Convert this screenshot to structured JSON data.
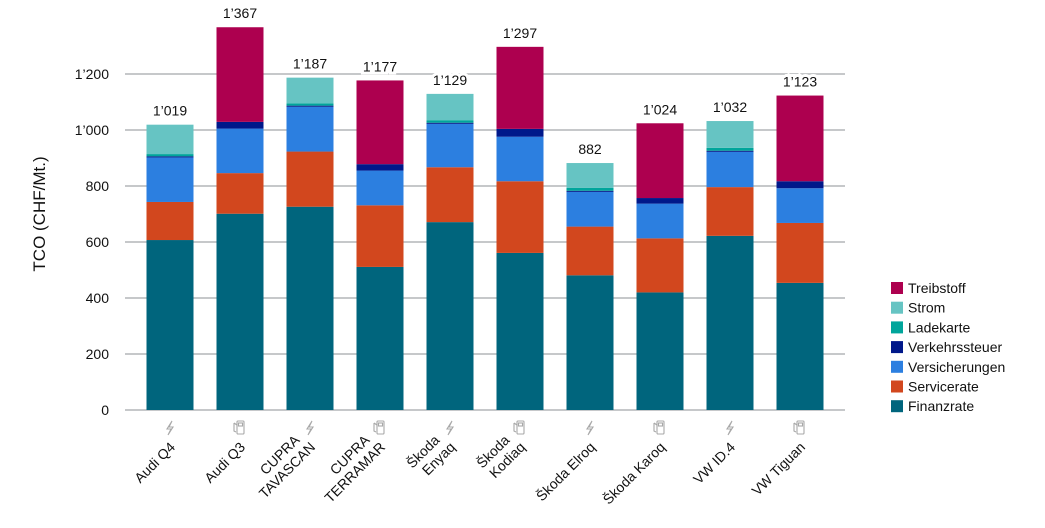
{
  "chart_data": {
    "type": "bar",
    "stacked": true,
    "title": "",
    "xlabel": "",
    "ylabel": "TCO (CHF/Mt.)",
    "ylim": [
      0,
      1400
    ],
    "yticks": [
      0,
      200,
      400,
      600,
      800,
      1000,
      1200
    ],
    "ytick_labels": [
      "0",
      "200",
      "400",
      "600",
      "800",
      "1’000",
      "1’200"
    ],
    "grid": true,
    "legend_position": "right",
    "categories": [
      {
        "label": [
          "Audi Q4"
        ],
        "drive": "electric",
        "total_label": "1’019"
      },
      {
        "label": [
          "Audi Q3"
        ],
        "drive": "fuel",
        "total_label": "1’367"
      },
      {
        "label": [
          "CUPRA",
          "TAVASCAN"
        ],
        "drive": "electric",
        "total_label": "1’187"
      },
      {
        "label": [
          "CUPRA",
          "TERRAMAR"
        ],
        "drive": "fuel",
        "total_label": "1’177"
      },
      {
        "label": [
          "Škoda",
          "Enyaq"
        ],
        "drive": "electric",
        "total_label": "1’129"
      },
      {
        "label": [
          "Škoda",
          "Kodiaq"
        ],
        "drive": "fuel",
        "total_label": "1’297"
      },
      {
        "label": [
          "Škoda Elroq"
        ],
        "drive": "electric",
        "total_label": "882"
      },
      {
        "label": [
          "Škoda Karoq"
        ],
        "drive": "fuel",
        "total_label": "1’024"
      },
      {
        "label": [
          "VW ID.4"
        ],
        "drive": "electric",
        "total_label": "1’032"
      },
      {
        "label": [
          "VW Tiguan"
        ],
        "drive": "fuel",
        "total_label": "1’123"
      }
    ],
    "series": [
      {
        "name": "Finanzrate",
        "color": "#00657D",
        "values": [
          607,
          701,
          726,
          511,
          671,
          561,
          481,
          420,
          622,
          454
        ]
      },
      {
        "name": "Servicerate",
        "color": "#D2471E",
        "values": [
          136,
          145,
          197,
          220,
          196,
          256,
          174,
          193,
          174,
          214
        ]
      },
      {
        "name": "Versicherungen",
        "color": "#2C7FE0",
        "values": [
          159,
          159,
          160,
          124,
          155,
          159,
          124,
          124,
          126,
          124
        ]
      },
      {
        "name": "Verkehrssteuer",
        "color": "#00188A",
        "values": [
          4,
          24,
          4,
          23,
          4,
          28,
          4,
          20,
          4,
          25
        ]
      },
      {
        "name": "Ladekarte",
        "color": "#00A59B",
        "values": [
          8,
          0,
          8,
          0,
          9,
          0,
          10,
          0,
          10,
          0
        ]
      },
      {
        "name": "Strom",
        "color": "#66C4C3",
        "values": [
          105,
          0,
          92,
          0,
          94,
          0,
          89,
          0,
          96,
          0
        ]
      },
      {
        "name": "Treibstoff",
        "color": "#AD004F",
        "values": [
          0,
          338,
          0,
          299,
          0,
          293,
          0,
          267,
          0,
          306
        ]
      }
    ]
  }
}
